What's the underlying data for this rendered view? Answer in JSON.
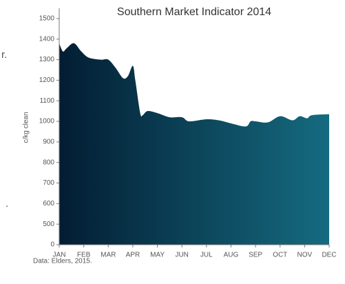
{
  "fragments": [
    "r.",
    "."
  ],
  "chart_data": {
    "type": "area",
    "title": "Southern Market Indicator 2014",
    "y_label": "c/kg clean",
    "source": "Data: Elders, 2015.",
    "colors": [
      "#031d33",
      "#156b80"
    ],
    "x": [
      0,
      0.15,
      0.3,
      0.6,
      0.9,
      1.2,
      1.7,
      2.0,
      2.3,
      2.6,
      2.8,
      3.0,
      3.1,
      3.3,
      3.4,
      3.6,
      4.0,
      4.5,
      5.0,
      5.3,
      6.0,
      6.5,
      7.0,
      7.6,
      7.8,
      8.0,
      8.5,
      9.0,
      9.5,
      9.8,
      10.1,
      10.3,
      11.0
    ],
    "values": [
      1380,
      1340,
      1355,
      1380,
      1340,
      1310,
      1300,
      1300,
      1260,
      1210,
      1220,
      1270,
      1200,
      1040,
      1030,
      1050,
      1040,
      1020,
      1020,
      1000,
      1010,
      1005,
      990,
      975,
      1000,
      1000,
      995,
      1025,
      1005,
      1025,
      1015,
      1030,
      1035
    ],
    "xlim": [
      0,
      11
    ],
    "xticks": [
      {
        "value": 0,
        "label": "JAN"
      },
      {
        "value": 1,
        "label": "FEB"
      },
      {
        "value": 2,
        "label": "MAR"
      },
      {
        "value": 3,
        "label": "APR"
      },
      {
        "value": 4,
        "label": "MAY"
      },
      {
        "value": 5,
        "label": "JUN"
      },
      {
        "value": 6,
        "label": "JUL"
      },
      {
        "value": 7,
        "label": "AUG"
      },
      {
        "value": 8,
        "label": "SEP"
      },
      {
        "value": 9,
        "label": "OCT"
      },
      {
        "value": 10,
        "label": "NOV"
      },
      {
        "value": 11,
        "label": "DEC"
      }
    ],
    "ylim": [
      400,
      1550
    ],
    "yticks": [
      {
        "value": 400,
        "label": "0"
      },
      500,
      600,
      700,
      800,
      900,
      1000,
      1100,
      1200,
      1300,
      1400,
      1500
    ]
  }
}
